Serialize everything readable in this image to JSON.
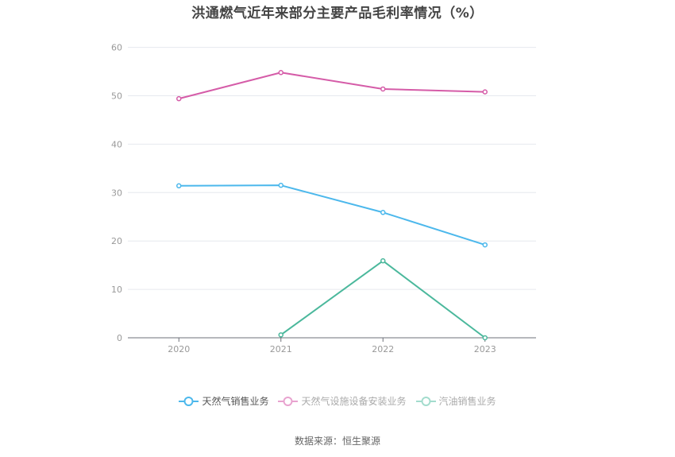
{
  "title": "洪通燃气近年来部分主要产品毛利率情况（%）",
  "source": "数据来源：恒生聚源",
  "chart_data": {
    "type": "line",
    "title": "洪通燃气近年来部分主要产品毛利率情况（%）",
    "xlabel": "",
    "ylabel": "",
    "categories": [
      "2020",
      "2021",
      "2022",
      "2023"
    ],
    "ylim": [
      0,
      60
    ],
    "yticks": [
      0,
      10,
      20,
      30,
      40,
      50,
      60
    ],
    "grid": true,
    "legend_position": "bottom",
    "series": [
      {
        "name": "天然气销售业务",
        "color": "#4cb8ec",
        "legend_text_color": "#555555",
        "values": [
          31.4,
          31.5,
          25.9,
          19.2
        ]
      },
      {
        "name": "天然气设施设备安装业务",
        "color": "#d55ca8",
        "legend_color": "#e8a3cf",
        "legend_text_color": "#aaaaaa",
        "values": [
          49.4,
          54.8,
          51.4,
          50.8
        ]
      },
      {
        "name": "汽油销售业务",
        "color": "#4bb89c",
        "legend_color": "#a3dccd",
        "legend_text_color": "#aaaaaa",
        "values": [
          null,
          0.6,
          15.9,
          0.0
        ]
      }
    ]
  }
}
